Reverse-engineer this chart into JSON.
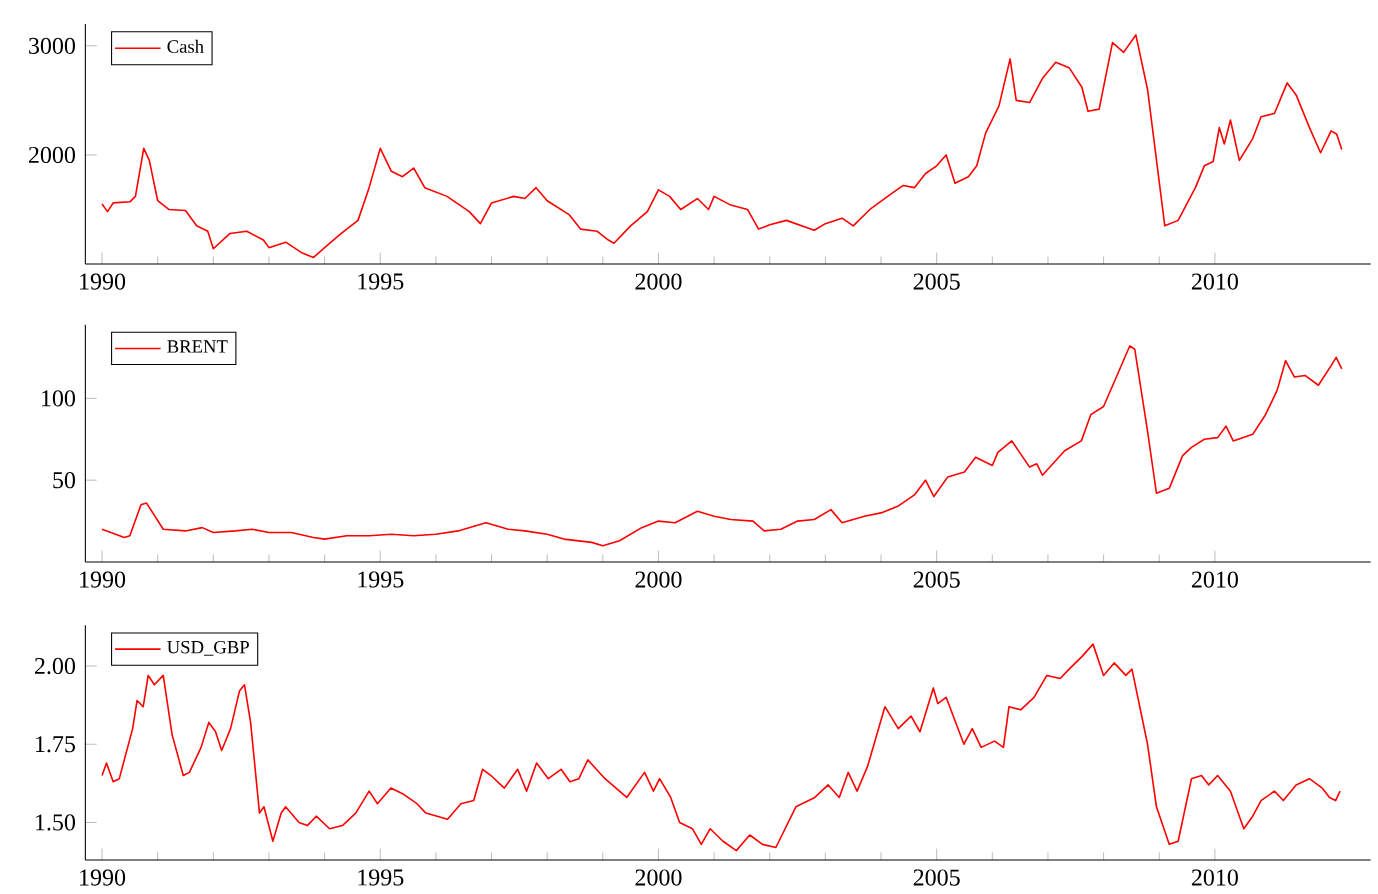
{
  "chart_data": [
    {
      "type": "line",
      "legend": "top left",
      "marker": "none",
      "line_style": "solid",
      "xlim": [
        1989.7,
        2012.8
      ],
      "xticks": [
        1990,
        1995,
        2000,
        2005,
        2010
      ],
      "ylim": [
        1000,
        3200
      ],
      "yticks": [
        2000,
        3000
      ],
      "x": [
        1990.0,
        1990.1,
        1990.2,
        1990.5,
        1990.6,
        1990.75,
        1990.85,
        1991.0,
        1991.2,
        1991.5,
        1991.7,
        1991.9,
        1992.0,
        1992.3,
        1992.6,
        1992.9,
        1993.0,
        1993.3,
        1993.6,
        1993.8,
        1994.0,
        1994.3,
        1994.6,
        1994.8,
        1995.0,
        1995.2,
        1995.4,
        1995.6,
        1995.8,
        1996.2,
        1996.6,
        1996.8,
        1997.0,
        1997.4,
        1997.6,
        1997.8,
        1998.0,
        1998.4,
        1998.6,
        1998.9,
        1999.1,
        1999.2,
        1999.5,
        1999.8,
        2000.0,
        2000.2,
        2000.4,
        2000.7,
        2000.9,
        2001.0,
        2001.3,
        2001.6,
        2001.8,
        2002.0,
        2002.3,
        2002.8,
        2003.0,
        2003.3,
        2003.5,
        2003.8,
        2004.2,
        2004.4,
        2004.6,
        2004.8,
        2005.0,
        2005.17,
        2005.33,
        2005.57,
        2005.72,
        2005.88,
        2006.12,
        2006.32,
        2006.43,
        2006.67,
        2006.9,
        2007.14,
        2007.38,
        2007.61,
        2007.72,
        2007.92,
        2008.16,
        2008.36,
        2008.58,
        2008.79,
        2009.1,
        2009.34,
        2009.65,
        2009.81,
        2009.97,
        2010.08,
        2010.17,
        2010.28,
        2010.44,
        2010.68,
        2010.83,
        2011.07,
        2011.3,
        2011.46,
        2011.7,
        2011.9,
        2012.09,
        2012.19,
        2012.28
      ],
      "series": [
        {
          "name": "Cash",
          "color": "#ff0000",
          "values": [
            1550,
            1480,
            1560,
            1570,
            1620,
            2060,
            1950,
            1580,
            1500,
            1490,
            1350,
            1300,
            1140,
            1280,
            1300,
            1220,
            1150,
            1200,
            1100,
            1060,
            1150,
            1280,
            1400,
            1700,
            2060,
            1850,
            1800,
            1880,
            1700,
            1620,
            1480,
            1370,
            1560,
            1620,
            1600,
            1700,
            1580,
            1450,
            1320,
            1300,
            1220,
            1190,
            1350,
            1480,
            1680,
            1620,
            1500,
            1600,
            1500,
            1620,
            1540,
            1500,
            1320,
            1360,
            1400,
            1310,
            1370,
            1420,
            1350,
            1500,
            1650,
            1720,
            1700,
            1830,
            1900,
            2000,
            1740,
            1800,
            1900,
            2200,
            2450,
            2880,
            2500,
            2480,
            2700,
            2850,
            2800,
            2620,
            2400,
            2420,
            3030,
            2940,
            3100,
            2600,
            1350,
            1400,
            1700,
            1900,
            1940,
            2250,
            2100,
            2320,
            1950,
            2150,
            2350,
            2380,
            2660,
            2550,
            2250,
            2020,
            2220,
            2190,
            2050
          ]
        }
      ]
    },
    {
      "type": "line",
      "legend": "top left",
      "marker": "none",
      "line_style": "solid",
      "xlim": [
        1989.7,
        2012.8
      ],
      "xticks": [
        1990,
        1995,
        2000,
        2005,
        2010
      ],
      "ylim": [
        0,
        145
      ],
      "yticks": [
        50,
        100
      ],
      "x": [
        1990.0,
        1990.4,
        1990.5,
        1990.7,
        1990.8,
        1991.1,
        1991.5,
        1991.8,
        1992.0,
        1992.4,
        1992.7,
        1993.0,
        1993.4,
        1993.8,
        1994.0,
        1994.4,
        1994.8,
        1995.2,
        1995.6,
        1996.0,
        1996.4,
        1996.7,
        1996.9,
        1997.3,
        1997.6,
        1998.0,
        1998.3,
        1998.8,
        1999.0,
        1999.3,
        1999.7,
        2000.0,
        2000.3,
        2000.7,
        2001.0,
        2001.3,
        2001.7,
        2001.9,
        2002.2,
        2002.5,
        2002.8,
        2003.1,
        2003.3,
        2003.7,
        2004.0,
        2004.3,
        2004.6,
        2004.8,
        2004.95,
        2005.2,
        2005.5,
        2005.7,
        2006.0,
        2006.1,
        2006.35,
        2006.67,
        2006.8,
        2006.9,
        2007.3,
        2007.6,
        2007.77,
        2008.0,
        2008.47,
        2008.56,
        2008.79,
        2008.95,
        2009.18,
        2009.42,
        2009.58,
        2009.81,
        2010.05,
        2010.2,
        2010.33,
        2010.68,
        2010.91,
        2011.12,
        2011.27,
        2011.43,
        2011.62,
        2011.86,
        2012.09,
        2012.18,
        2012.28
      ],
      "series": [
        {
          "name": "BRENT",
          "color": "#ff0000",
          "values": [
            20,
            15,
            16,
            35,
            36,
            20,
            19,
            21,
            18,
            19,
            20,
            18,
            18,
            15,
            14,
            16,
            16,
            17,
            16,
            17,
            19,
            22,
            24,
            20,
            19,
            17,
            14,
            12,
            10,
            13,
            21,
            25,
            24,
            31,
            28,
            26,
            25,
            19,
            20,
            25,
            26,
            32,
            24,
            28,
            30,
            34,
            41,
            50,
            40,
            52,
            55,
            64,
            59,
            67,
            74,
            58,
            60,
            53,
            68,
            74,
            90,
            95,
            132,
            130,
            80,
            42,
            45,
            65,
            70,
            75,
            76,
            83,
            74,
            78,
            90,
            105,
            123,
            113,
            114,
            108,
            120,
            125,
            118
          ]
        }
      ]
    },
    {
      "type": "line",
      "legend": "top left",
      "marker": "none",
      "line_style": "solid",
      "xlim": [
        1989.7,
        2012.8
      ],
      "xticks": [
        1990,
        1995,
        2000,
        2005,
        2010
      ],
      "ylim": [
        1.38,
        2.13
      ],
      "yticks": [
        {
          "value": 1.5,
          "label": "1.50"
        },
        {
          "value": 1.75,
          "label": "1.75"
        },
        {
          "value": 2.0,
          "label": "2.00"
        }
      ],
      "x": [
        1990.0,
        1990.08,
        1990.2,
        1990.31,
        1990.55,
        1990.63,
        1990.74,
        1990.83,
        1990.94,
        1991.1,
        1991.26,
        1991.46,
        1991.57,
        1991.78,
        1991.92,
        1992.04,
        1992.15,
        1992.31,
        1992.47,
        1992.56,
        1992.67,
        1992.83,
        1992.91,
        1993.07,
        1993.22,
        1993.3,
        1993.54,
        1993.69,
        1993.85,
        1994.09,
        1994.32,
        1994.56,
        1994.8,
        1994.95,
        1995.19,
        1995.42,
        1995.66,
        1995.82,
        1996.21,
        1996.45,
        1996.68,
        1996.84,
        1996.99,
        1997.23,
        1997.47,
        1997.63,
        1997.81,
        1998.02,
        1998.25,
        1998.41,
        1998.57,
        1998.73,
        1999.04,
        1999.43,
        1999.75,
        1999.91,
        2000.02,
        2000.22,
        2000.38,
        2000.61,
        2000.77,
        2000.93,
        2001.16,
        2001.4,
        2001.64,
        2001.87,
        2002.11,
        2002.47,
        2002.81,
        2003.05,
        2003.25,
        2003.41,
        2003.57,
        2003.76,
        2004.07,
        2004.31,
        2004.54,
        2004.7,
        2004.94,
        2005.02,
        2005.17,
        2005.49,
        2005.64,
        2005.8,
        2006.04,
        2006.2,
        2006.3,
        2006.51,
        2006.75,
        2006.98,
        2007.22,
        2007.38,
        2007.61,
        2007.81,
        2008.0,
        2008.19,
        2008.4,
        2008.51,
        2008.79,
        2008.95,
        2009.18,
        2009.34,
        2009.58,
        2009.76,
        2009.89,
        2010.05,
        2010.28,
        2010.52,
        2010.68,
        2010.83,
        2011.07,
        2011.23,
        2011.46,
        2011.7,
        2011.93,
        2012.06,
        2012.17,
        2012.25
      ],
      "series": [
        {
          "name": "USD_GBP",
          "color": "#ff0000",
          "values": [
            1.65,
            1.69,
            1.63,
            1.64,
            1.8,
            1.89,
            1.87,
            1.97,
            1.94,
            1.97,
            1.78,
            1.65,
            1.66,
            1.74,
            1.82,
            1.79,
            1.73,
            1.8,
            1.92,
            1.94,
            1.82,
            1.53,
            1.55,
            1.44,
            1.53,
            1.55,
            1.5,
            1.49,
            1.52,
            1.48,
            1.49,
            1.53,
            1.6,
            1.56,
            1.61,
            1.59,
            1.56,
            1.53,
            1.51,
            1.56,
            1.57,
            1.67,
            1.65,
            1.61,
            1.67,
            1.6,
            1.69,
            1.64,
            1.67,
            1.63,
            1.64,
            1.7,
            1.64,
            1.58,
            1.66,
            1.6,
            1.64,
            1.58,
            1.5,
            1.48,
            1.43,
            1.48,
            1.44,
            1.41,
            1.46,
            1.43,
            1.42,
            1.55,
            1.58,
            1.62,
            1.58,
            1.66,
            1.6,
            1.68,
            1.87,
            1.8,
            1.84,
            1.79,
            1.93,
            1.88,
            1.9,
            1.75,
            1.8,
            1.74,
            1.76,
            1.74,
            1.87,
            1.86,
            1.9,
            1.97,
            1.96,
            1.99,
            2.03,
            2.07,
            1.97,
            2.01,
            1.97,
            1.99,
            1.75,
            1.55,
            1.43,
            1.44,
            1.64,
            1.65,
            1.62,
            1.65,
            1.6,
            1.48,
            1.52,
            1.57,
            1.6,
            1.57,
            1.62,
            1.64,
            1.61,
            1.58,
            1.57,
            1.6
          ]
        }
      ]
    }
  ]
}
